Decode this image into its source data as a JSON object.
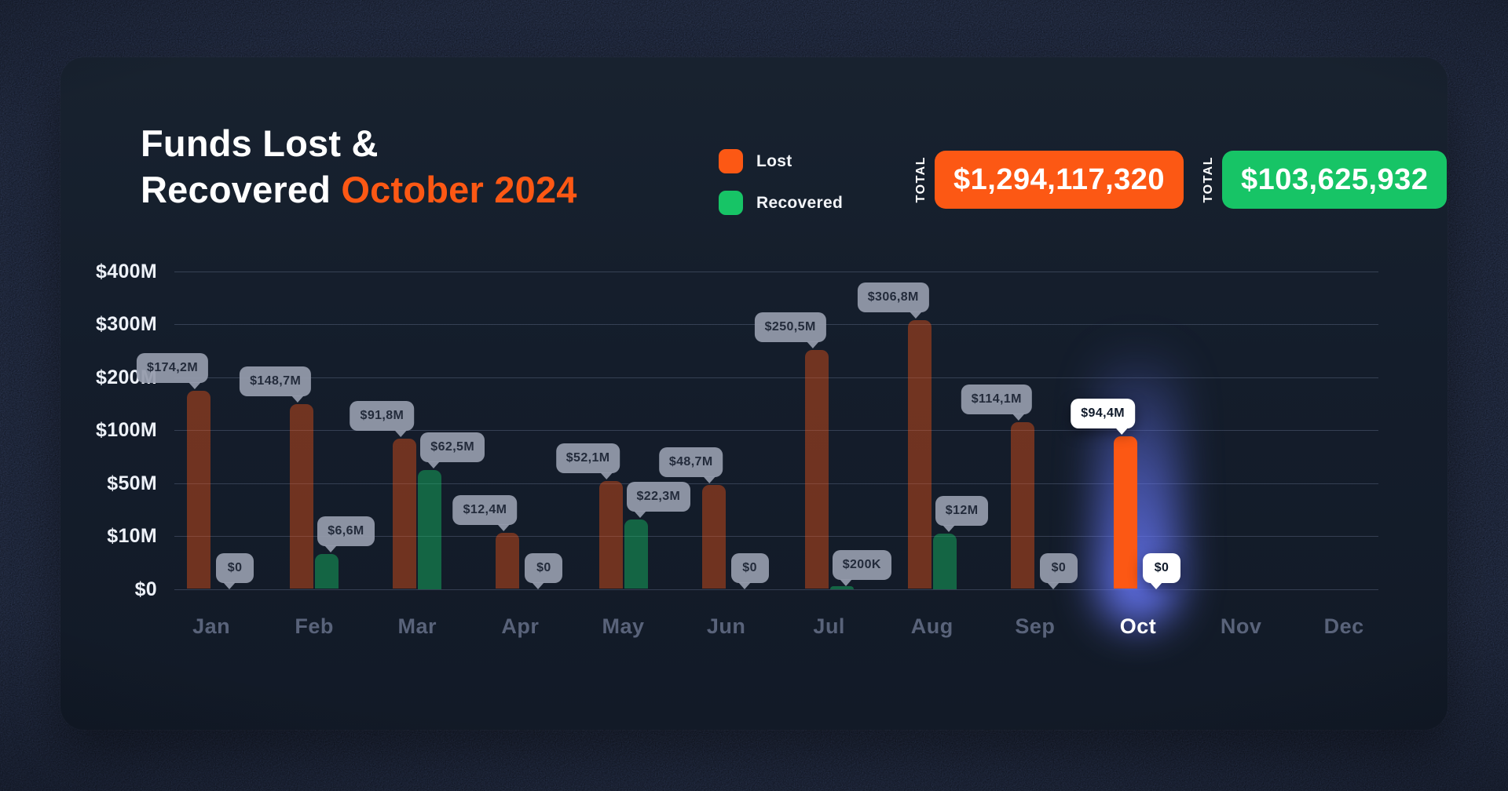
{
  "title": {
    "line1": "Funds Lost &",
    "line2_white": "Recovered ",
    "line2_accent": "October 2024"
  },
  "legend": [
    {
      "label": "Lost",
      "color": "#FC5814"
    },
    {
      "label": "Recovered",
      "color": "#17C466"
    }
  ],
  "totals": [
    {
      "label": "TOTAL",
      "value": "$1,294,117,320",
      "color": "#FC5814"
    },
    {
      "label": "TOTAL",
      "value": "$103,625,932",
      "color": "#17C466"
    }
  ],
  "chart_data": {
    "type": "bar",
    "title": "Funds Lost & Recovered October 2024",
    "unit": "USD",
    "categories": [
      "Jan",
      "Feb",
      "Mar",
      "Apr",
      "May",
      "Jun",
      "Jul",
      "Aug",
      "Sep",
      "Oct",
      "Nov",
      "Dec"
    ],
    "series": [
      {
        "name": "Lost",
        "color": "#FC5814",
        "values": [
          174.2,
          148.7,
          91.8,
          12.4,
          52.1,
          48.7,
          250.5,
          306.8,
          114.1,
          94.4,
          null,
          null
        ],
        "labels": [
          "$174,2M",
          "$148,7M",
          "$91,8M",
          "$12,4M",
          "$52,1M",
          "$48,7M",
          "$250,5M",
          "$306,8M",
          "$114,1M",
          "$94,4M",
          null,
          null
        ]
      },
      {
        "name": "Recovered",
        "color": "#17C466",
        "values": [
          0,
          6.6,
          62.5,
          0,
          22.3,
          0,
          0.2,
          12,
          0,
          0,
          null,
          null
        ],
        "labels": [
          "$0",
          "$6,6M",
          "$62,5M",
          "$0",
          "$22,3M",
          "$0",
          "$200K",
          "$12M",
          "$0",
          "$0",
          null,
          null
        ]
      }
    ],
    "y_ticks": [
      0,
      10,
      50,
      100,
      200,
      300,
      400
    ],
    "y_tick_labels": [
      "$0",
      "$10M",
      "$50M",
      "$100M",
      "$200M",
      "$300M",
      "$400M"
    ],
    "xlabel": "",
    "ylabel": "",
    "grid": true,
    "legend_position": "top",
    "highlighted_category": "Oct",
    "highlight_glow_color": "#6A7AFF"
  }
}
